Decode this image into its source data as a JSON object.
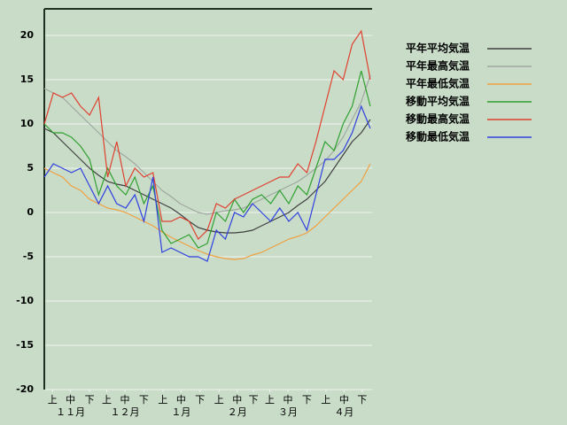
{
  "chart_data": {
    "type": "line",
    "x": [
      0,
      5,
      10,
      15,
      20,
      25,
      30,
      35,
      40,
      45,
      50,
      55,
      60,
      65,
      70,
      75,
      80,
      85,
      90,
      95,
      100,
      105,
      110,
      115,
      120,
      125,
      130,
      135,
      140,
      145,
      150,
      155,
      160,
      165,
      170,
      175,
      180
    ],
    "xlim": [
      0,
      181
    ],
    "xticks": [
      {
        "value": 4.5,
        "label": "上"
      },
      {
        "value": 14.5,
        "label": "中"
      },
      {
        "value": 25,
        "label": "下"
      },
      {
        "value": 34.5,
        "label": "上"
      },
      {
        "value": 44.5,
        "label": "中"
      },
      {
        "value": 55,
        "label": "下"
      },
      {
        "value": 65.5,
        "label": "上"
      },
      {
        "value": 75.5,
        "label": "中"
      },
      {
        "value": 86,
        "label": "下"
      },
      {
        "value": 96.5,
        "label": "上"
      },
      {
        "value": 106.5,
        "label": "中"
      },
      {
        "value": 115.5,
        "label": "下"
      },
      {
        "value": 124.5,
        "label": "上"
      },
      {
        "value": 134.5,
        "label": "中"
      },
      {
        "value": 145,
        "label": "下"
      },
      {
        "value": 155.5,
        "label": "上"
      },
      {
        "value": 165.5,
        "label": "中"
      },
      {
        "value": 175.5,
        "label": "下"
      }
    ],
    "month_ticks": [
      {
        "value": 14.5,
        "label": "１１月"
      },
      {
        "value": 44.5,
        "label": "１２月"
      },
      {
        "value": 75.5,
        "label": "１月"
      },
      {
        "value": 106.5,
        "label": "２月"
      },
      {
        "value": 134.5,
        "label": "３月"
      },
      {
        "value": 165.5,
        "label": "４月"
      }
    ],
    "ylim": [
      -20,
      23
    ],
    "yticks": [
      -20,
      -15,
      -10,
      -5,
      0,
      5,
      10,
      15,
      20
    ],
    "grid": true,
    "series": [
      {
        "name": "平年平均気温",
        "color": "#404040",
        "values": [
          9.5,
          9,
          8,
          7,
          6,
          5,
          4.2,
          3.5,
          3.2,
          3,
          2.5,
          2,
          1.5,
          1,
          0.5,
          -0.2,
          -1,
          -1.7,
          -2,
          -2.2,
          -2.3,
          -2.3,
          -2.2,
          -2,
          -1.5,
          -1,
          -0.5,
          0,
          0.8,
          1.5,
          2.5,
          3.5,
          5,
          6.5,
          8,
          9,
          10.5
        ]
      },
      {
        "name": "平年最高気温",
        "color": "#a0a8a0",
        "values": [
          14,
          13.5,
          13,
          12,
          11,
          10,
          9,
          8,
          7,
          6.3,
          5.5,
          4.5,
          3.5,
          2.5,
          1.8,
          1,
          0.5,
          0,
          -0.2,
          0,
          0.2,
          0.3,
          0.5,
          1,
          1.5,
          2,
          2.5,
          3,
          3.5,
          4.2,
          5,
          5.8,
          7,
          8.5,
          10.5,
          12.5,
          15.5
        ]
      },
      {
        "name": "平年最低気温",
        "color": "#f0a040",
        "values": [
          5,
          4.5,
          4,
          3,
          2.5,
          1.5,
          1,
          0.5,
          0.3,
          0,
          -0.5,
          -1,
          -1.5,
          -2.2,
          -2.8,
          -3.3,
          -3.8,
          -4.3,
          -4.7,
          -5,
          -5.2,
          -5.3,
          -5.2,
          -4.8,
          -4.5,
          -4,
          -3.5,
          -3,
          -2.7,
          -2.3,
          -1.5,
          -0.5,
          0.5,
          1.5,
          2.5,
          3.5,
          5.5
        ]
      },
      {
        "name": "移動平均気温",
        "color": "#30a030",
        "values": [
          10,
          9,
          9,
          8.5,
          7.5,
          6,
          2,
          5,
          3,
          2,
          4,
          1,
          3,
          -2,
          -3.5,
          -3,
          -2.5,
          -4,
          -3.5,
          0,
          -1,
          1.5,
          0,
          1.5,
          2,
          1,
          2.5,
          1,
          3,
          2,
          5,
          8,
          7,
          10,
          12,
          16,
          12
        ]
      },
      {
        "name": "移動最高気温",
        "color": "#e04030",
        "values": [
          10,
          13.5,
          13,
          13.5,
          12,
          11,
          13,
          4,
          8,
          3,
          5,
          4,
          4.5,
          -1,
          -1,
          -0.5,
          -1,
          -3,
          -2,
          1,
          0.5,
          1.5,
          2,
          2.5,
          3,
          3.5,
          4,
          4,
          5.5,
          4.5,
          8,
          12,
          16,
          15,
          19,
          20.5,
          15
        ]
      },
      {
        "name": "移動最低気温",
        "color": "#3040e0",
        "values": [
          4,
          5.5,
          5,
          4.5,
          5,
          3,
          1,
          3,
          1,
          0.5,
          2,
          -1,
          4,
          -4.5,
          -4,
          -4.5,
          -5,
          -5,
          -5.5,
          -2,
          -3,
          0,
          -0.5,
          1,
          0,
          -1,
          0.5,
          -1,
          0,
          -2,
          2,
          6,
          6,
          7,
          9,
          12,
          9.5
        ]
      }
    ]
  }
}
